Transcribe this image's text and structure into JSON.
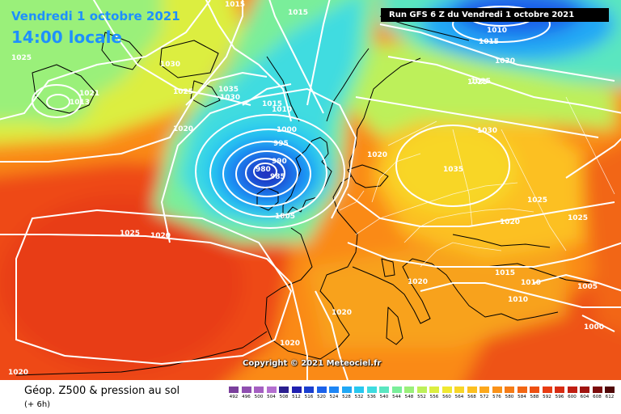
{
  "header": {
    "date": "Vendredi 1 octobre 2021",
    "time": "14:00 locale",
    "run_info": "Run GFS 6 Z du Vendredi 1 octobre 2021"
  },
  "copyright": "Copyright © 2021 Meteociel.fr",
  "footer": {
    "title": "Géop. Z500 & pression au sol",
    "subtitle": "(+ 6h)"
  },
  "scale": {
    "ticks": [
      "492",
      "496",
      "500",
      "504",
      "508",
      "512",
      "516",
      "520",
      "524",
      "528",
      "532",
      "536",
      "540",
      "544",
      "548",
      "552",
      "556",
      "560",
      "564",
      "568",
      "572",
      "576",
      "580",
      "584",
      "588",
      "592",
      "596",
      "600",
      "604",
      "608",
      "612"
    ],
    "colors": [
      "#7a3f9c",
      "#8f4fb0",
      "#a55fc2",
      "#b46fd0",
      "#2b1f8f",
      "#2020b0",
      "#1a3fd0",
      "#1c62ea",
      "#1e86f5",
      "#20a8f5",
      "#28c8f0",
      "#3fdce0",
      "#5ae6c0",
      "#7aee9a",
      "#9af07a",
      "#bdf05a",
      "#dcee40",
      "#f0e830",
      "#f8d628",
      "#fcc020",
      "#fca81c",
      "#fa9218",
      "#f67c16",
      "#f26614",
      "#ee5012",
      "#e83c12",
      "#d82c12",
      "#c01e12",
      "#a01410",
      "#7c0c0c",
      "#500808"
    ]
  },
  "isobars": [
    "1015",
    "1015",
    "1010",
    "1015",
    "1025",
    "1030",
    "1021",
    "1013",
    "1025",
    "1035",
    "1030",
    "1015",
    "1010",
    "1020",
    "1000",
    "995",
    "990",
    "980",
    "985",
    "1005",
    "1025",
    "1030",
    "1025",
    "1030",
    "1035",
    "1025",
    "1020",
    "1025",
    "1025",
    "1020",
    "1015",
    "1010",
    "1010",
    "1020",
    "1005",
    "1020",
    "1000",
    "1020",
    "1020",
    "1020"
  ]
}
